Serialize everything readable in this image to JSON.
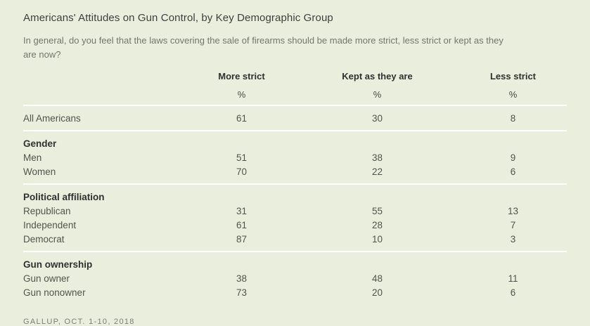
{
  "colors": {
    "background": "#eaeedc",
    "divider": "#ffffff",
    "title_text": "#3f3f3f",
    "subtitle_text": "#73766b",
    "header_text": "#303030",
    "body_text": "#51544b",
    "footer_text": "#7c7f73"
  },
  "chart_data": {
    "type": "table",
    "title": "Americans' Attitudes on Gun Control, by Key Demographic Group",
    "subtitle": "In general, do you feel that the laws covering the sale of firearms should be made more strict, less strict or kept as they are now?",
    "columns": [
      "More strict",
      "Kept as they are",
      "Less strict"
    ],
    "unit_row": [
      "%",
      "%",
      "%"
    ],
    "sections": [
      {
        "header": "",
        "divider_after": true,
        "rows": [
          {
            "label": "All Americans",
            "values": [
              61,
              30,
              8
            ]
          }
        ]
      },
      {
        "header": "Gender",
        "divider_after": true,
        "rows": [
          {
            "label": "Men",
            "values": [
              51,
              38,
              9
            ]
          },
          {
            "label": "Women",
            "values": [
              70,
              22,
              6
            ]
          }
        ]
      },
      {
        "header": "Political affiliation",
        "divider_after": true,
        "rows": [
          {
            "label": "Republican",
            "values": [
              31,
              55,
              13
            ]
          },
          {
            "label": "Independent",
            "values": [
              61,
              28,
              7
            ]
          },
          {
            "label": "Democrat",
            "values": [
              87,
              10,
              3
            ]
          }
        ]
      },
      {
        "header": "Gun ownership",
        "divider_after": false,
        "rows": [
          {
            "label": "Gun owner",
            "values": [
              38,
              48,
              11
            ]
          },
          {
            "label": "Gun nonowner",
            "values": [
              73,
              20,
              6
            ]
          }
        ]
      }
    ],
    "source": "GALLUP, OCT. 1-10, 2018"
  }
}
